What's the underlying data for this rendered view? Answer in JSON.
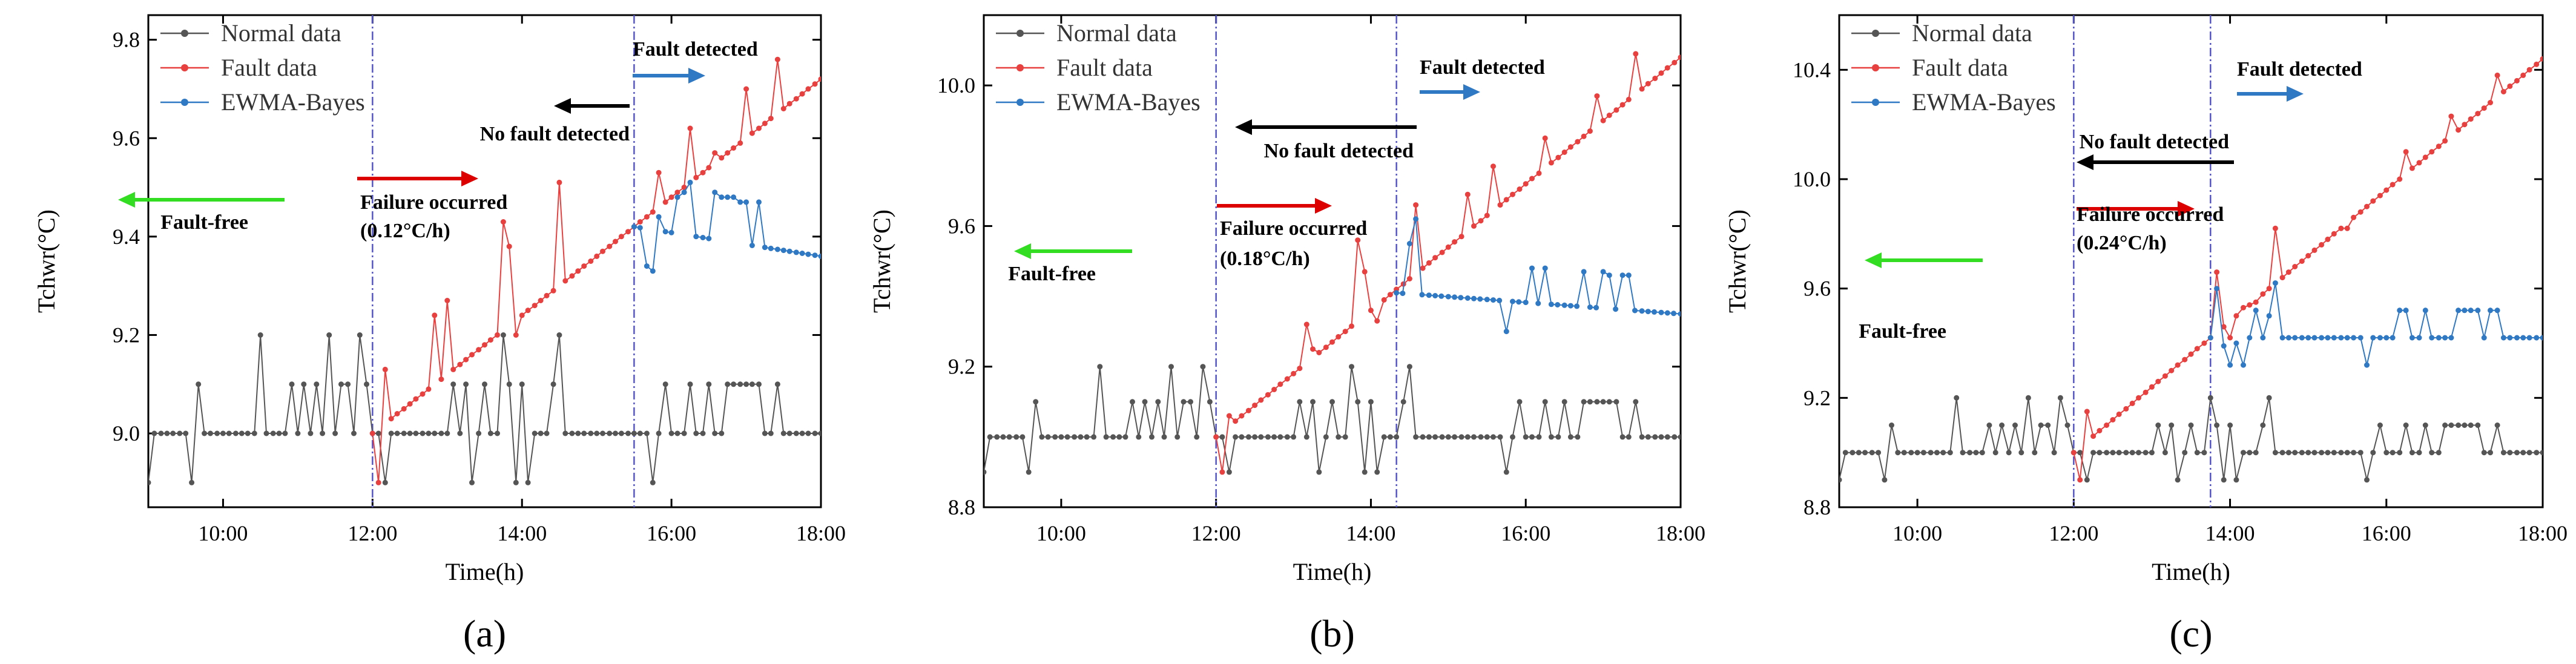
{
  "chart_data": [
    {
      "type": "line",
      "panel_label": "(a)",
      "xlabel": "Time(h)",
      "ylabel": "Tchwr(°C)",
      "xlim": [
        9.0,
        18.0
      ],
      "ylim": [
        8.85,
        9.85
      ],
      "x_ticks": [
        10,
        12,
        14,
        16,
        18
      ],
      "x_tick_labels": [
        "10:00",
        "12:00",
        "14:00",
        "16:00",
        "18:00"
      ],
      "y_ticks": [
        9.0,
        9.2,
        9.4,
        9.6,
        9.8
      ],
      "y_tick_labels": [
        "9.0",
        "9.2",
        "9.4",
        "9.6",
        "9.8"
      ],
      "legend": [
        "Normal data",
        "Fault data",
        "EWMA-Bayes"
      ],
      "colors": {
        "normal": "#555555",
        "fault": "#e8403f",
        "ewma": "#2f78c4",
        "green": "#33dd22",
        "red": "#dd0000",
        "black": "#000000",
        "blue": "#2f78c4",
        "vline": "#5555cc"
      },
      "fault_start": 12.0,
      "fault_rate": 0.12,
      "detect_time": 15.5,
      "normal_base": 9.0,
      "normal_spikes": [
        [
          9.0,
          8.9
        ],
        [
          9.58,
          8.9
        ],
        [
          9.67,
          9.1
        ],
        [
          10.5,
          9.2
        ],
        [
          10.92,
          9.1
        ],
        [
          11.08,
          9.1
        ],
        [
          11.17,
          9.0
        ],
        [
          11.25,
          9.1
        ],
        [
          11.42,
          9.2
        ],
        [
          11.5,
          9.0
        ],
        [
          11.58,
          9.1
        ],
        [
          11.67,
          9.1
        ],
        [
          11.83,
          9.2
        ],
        [
          11.92,
          9.1
        ],
        [
          12.17,
          8.9
        ],
        [
          12.25,
          9.0
        ],
        [
          13.08,
          9.1
        ],
        [
          13.25,
          9.1
        ],
        [
          13.33,
          8.9
        ],
        [
          13.5,
          9.1
        ],
        [
          13.75,
          9.2
        ],
        [
          13.83,
          9.1
        ],
        [
          13.92,
          8.9
        ],
        [
          14.0,
          9.1
        ],
        [
          14.08,
          8.9
        ],
        [
          14.42,
          9.1
        ],
        [
          14.5,
          9.2
        ],
        [
          15.75,
          8.9
        ],
        [
          15.92,
          9.1
        ],
        [
          16.25,
          9.1
        ],
        [
          16.5,
          9.1
        ],
        [
          16.75,
          9.1
        ],
        [
          16.83,
          9.1
        ],
        [
          16.92,
          9.1
        ],
        [
          17.0,
          9.1
        ],
        [
          17.08,
          9.1
        ],
        [
          17.17,
          9.1
        ],
        [
          17.42,
          9.1
        ]
      ],
      "fault_spikes": [
        [
          12.08,
          8.9
        ],
        [
          12.17,
          9.13
        ],
        [
          12.83,
          9.24
        ],
        [
          13.0,
          9.27
        ],
        [
          13.75,
          9.43
        ],
        [
          13.83,
          9.38
        ],
        [
          13.92,
          9.2
        ],
        [
          14.08,
          9.25
        ],
        [
          14.5,
          9.51
        ],
        [
          15.83,
          9.53
        ],
        [
          16.25,
          9.62
        ],
        [
          16.58,
          9.57
        ],
        [
          17.0,
          9.7
        ],
        [
          17.42,
          9.76
        ]
      ],
      "ewma_start": 15.5,
      "ewma_base": [
        9.42,
        9.36
      ],
      "ewma_spikes": [
        [
          15.67,
          9.34
        ],
        [
          15.75,
          9.33
        ],
        [
          15.83,
          9.44
        ],
        [
          16.08,
          9.48
        ],
        [
          16.17,
          9.49
        ],
        [
          16.25,
          9.51
        ],
        [
          16.58,
          9.49
        ],
        [
          16.67,
          9.48
        ],
        [
          16.75,
          9.48
        ],
        [
          16.83,
          9.48
        ],
        [
          16.92,
          9.47
        ],
        [
          17.0,
          9.47
        ],
        [
          17.17,
          9.47
        ]
      ],
      "vlines": [
        12.0,
        15.5
      ],
      "legend_pos": "top-left",
      "annotations": {
        "fault_free": "Fault-free",
        "failure_line1": "Failure occurred",
        "failure_line2": "(0.12°C/h)",
        "no_fault": "No fault detected",
        "detected": "Fault detected"
      }
    },
    {
      "type": "line",
      "panel_label": "(b)",
      "xlabel": "Time(h)",
      "ylabel": "Tchwr(°C)",
      "xlim": [
        9.0,
        18.0
      ],
      "ylim": [
        8.8,
        10.2
      ],
      "x_ticks": [
        10,
        12,
        14,
        16,
        18
      ],
      "x_tick_labels": [
        "10:00",
        "12:00",
        "14:00",
        "16:00",
        "18:00"
      ],
      "y_ticks": [
        8.8,
        9.2,
        9.6,
        10.0
      ],
      "y_tick_labels": [
        "8.8",
        "9.2",
        "9.6",
        "10.0"
      ],
      "legend": [
        "Normal data",
        "Fault data",
        "EWMA-Bayes"
      ],
      "colors": {
        "normal": "#555555",
        "fault": "#e8403f",
        "ewma": "#2f78c4",
        "green": "#33dd22",
        "red": "#dd0000",
        "black": "#000000",
        "blue": "#2f78c4",
        "vline": "#5555cc"
      },
      "fault_start": 12.0,
      "fault_rate": 0.18,
      "detect_time": 14.33,
      "normal_base": 9.0,
      "normal_spikes": [
        [
          9.0,
          8.9
        ],
        [
          9.58,
          8.9
        ],
        [
          9.67,
          9.1
        ],
        [
          10.5,
          9.2
        ],
        [
          10.92,
          9.1
        ],
        [
          11.08,
          9.1
        ],
        [
          11.17,
          9.0
        ],
        [
          11.25,
          9.1
        ],
        [
          11.42,
          9.2
        ],
        [
          11.5,
          9.0
        ],
        [
          11.58,
          9.1
        ],
        [
          11.67,
          9.1
        ],
        [
          11.83,
          9.2
        ],
        [
          11.92,
          9.1
        ],
        [
          12.17,
          8.9
        ],
        [
          12.25,
          9.0
        ],
        [
          13.08,
          9.1
        ],
        [
          13.25,
          9.1
        ],
        [
          13.33,
          8.9
        ],
        [
          13.5,
          9.1
        ],
        [
          13.75,
          9.2
        ],
        [
          13.83,
          9.1
        ],
        [
          13.92,
          8.9
        ],
        [
          14.0,
          9.1
        ],
        [
          14.08,
          8.9
        ],
        [
          14.42,
          9.1
        ],
        [
          14.5,
          9.2
        ],
        [
          15.75,
          8.9
        ],
        [
          15.92,
          9.1
        ],
        [
          16.25,
          9.1
        ],
        [
          16.5,
          9.1
        ],
        [
          16.75,
          9.1
        ],
        [
          16.83,
          9.1
        ],
        [
          16.92,
          9.1
        ],
        [
          17.0,
          9.1
        ],
        [
          17.08,
          9.1
        ],
        [
          17.17,
          9.1
        ],
        [
          17.42,
          9.1
        ]
      ],
      "fault_spikes": [
        [
          12.08,
          8.9
        ],
        [
          12.17,
          9.06
        ],
        [
          13.17,
          9.32
        ],
        [
          13.25,
          9.25
        ],
        [
          13.83,
          9.56
        ],
        [
          13.92,
          9.47
        ],
        [
          14.08,
          9.33
        ],
        [
          14.58,
          9.66
        ],
        [
          15.25,
          9.69
        ],
        [
          15.58,
          9.77
        ],
        [
          16.25,
          9.85
        ],
        [
          16.92,
          9.97
        ],
        [
          17.42,
          10.09
        ]
      ],
      "ewma_start": 14.33,
      "ewma_base": [
        9.41,
        9.35
      ],
      "ewma_spikes": [
        [
          14.5,
          9.55
        ],
        [
          14.58,
          9.62
        ],
        [
          15.75,
          9.3
        ],
        [
          16.08,
          9.48
        ],
        [
          16.25,
          9.48
        ],
        [
          16.42,
          9.44
        ],
        [
          16.67,
          9.46
        ],
        [
          16.75,
          9.47
        ],
        [
          16.92,
          9.47
        ],
        [
          17.0,
          9.47
        ],
        [
          17.08,
          9.46
        ],
        [
          17.25,
          9.46
        ],
        [
          17.33,
          9.46
        ]
      ],
      "vlines": [
        12.0,
        14.33
      ],
      "legend_pos": "top-left",
      "annotations": {
        "fault_free": "Fault-free",
        "failure_line1": "Failure occurred",
        "failure_line2": "(0.18°C/h)",
        "no_fault": "No fault detected",
        "detected": "Fault detected"
      }
    },
    {
      "type": "line",
      "panel_label": "(c)",
      "xlabel": "Time(h)",
      "ylabel": "Tchwr(°C)",
      "xlim": [
        9.0,
        18.0
      ],
      "ylim": [
        8.8,
        10.6
      ],
      "x_ticks": [
        10,
        12,
        14,
        16,
        18
      ],
      "x_tick_labels": [
        "10:00",
        "12:00",
        "14:00",
        "16:00",
        "18:00"
      ],
      "y_ticks": [
        8.8,
        9.2,
        9.6,
        10.0,
        10.4
      ],
      "y_tick_labels": [
        "8.8",
        "9.2",
        "9.6",
        "10.0",
        "10.4"
      ],
      "legend": [
        "Normal data",
        "Fault data",
        "EWMA-Bayes"
      ],
      "colors": {
        "normal": "#555555",
        "fault": "#e8403f",
        "ewma": "#2f78c4",
        "green": "#33dd22",
        "red": "#dd0000",
        "black": "#000000",
        "blue": "#2f78c4",
        "vline": "#5555cc"
      },
      "fault_start": 12.0,
      "fault_rate": 0.24,
      "detect_time": 13.75,
      "normal_base": 9.0,
      "normal_spikes": [
        [
          9.0,
          8.9
        ],
        [
          9.58,
          8.9
        ],
        [
          9.67,
          9.1
        ],
        [
          10.5,
          9.2
        ],
        [
          10.92,
          9.1
        ],
        [
          11.08,
          9.1
        ],
        [
          11.17,
          9.0
        ],
        [
          11.25,
          9.1
        ],
        [
          11.42,
          9.2
        ],
        [
          11.5,
          9.0
        ],
        [
          11.58,
          9.1
        ],
        [
          11.67,
          9.1
        ],
        [
          11.83,
          9.2
        ],
        [
          11.92,
          9.1
        ],
        [
          12.17,
          8.9
        ],
        [
          12.25,
          9.0
        ],
        [
          13.08,
          9.1
        ],
        [
          13.25,
          9.1
        ],
        [
          13.33,
          8.9
        ],
        [
          13.5,
          9.1
        ],
        [
          13.75,
          9.2
        ],
        [
          13.83,
          9.1
        ],
        [
          13.92,
          8.9
        ],
        [
          14.0,
          9.1
        ],
        [
          14.08,
          8.9
        ],
        [
          14.42,
          9.1
        ],
        [
          14.5,
          9.2
        ],
        [
          15.75,
          8.9
        ],
        [
          15.92,
          9.1
        ],
        [
          16.25,
          9.1
        ],
        [
          16.5,
          9.1
        ],
        [
          16.75,
          9.1
        ],
        [
          16.83,
          9.1
        ],
        [
          16.92,
          9.1
        ],
        [
          17.0,
          9.1
        ],
        [
          17.08,
          9.1
        ],
        [
          17.17,
          9.1
        ],
        [
          17.42,
          9.1
        ]
      ],
      "fault_spikes": [
        [
          12.08,
          8.9
        ],
        [
          12.17,
          9.15
        ],
        [
          13.83,
          9.66
        ],
        [
          14.0,
          9.42
        ],
        [
          14.17,
          9.53
        ],
        [
          14.33,
          9.55
        ],
        [
          14.58,
          9.82
        ],
        [
          15.5,
          9.82
        ],
        [
          16.25,
          10.1
        ],
        [
          16.83,
          10.23
        ],
        [
          17.42,
          10.38
        ]
      ],
      "ewma_start": 13.75,
      "ewma_base": [
        9.42,
        9.42
      ],
      "ewma_spikes": [
        [
          13.83,
          9.6
        ],
        [
          13.92,
          9.39
        ],
        [
          14.0,
          9.32
        ],
        [
          14.08,
          9.4
        ],
        [
          14.17,
          9.32
        ],
        [
          14.33,
          9.52
        ],
        [
          14.5,
          9.5
        ],
        [
          14.58,
          9.62
        ],
        [
          15.75,
          9.32
        ],
        [
          16.17,
          9.52
        ],
        [
          16.25,
          9.52
        ],
        [
          16.5,
          9.52
        ],
        [
          16.92,
          9.52
        ],
        [
          17.0,
          9.52
        ],
        [
          17.08,
          9.52
        ],
        [
          17.17,
          9.52
        ],
        [
          17.33,
          9.52
        ],
        [
          17.42,
          9.52
        ]
      ],
      "vlines": [
        12.0,
        13.75
      ],
      "legend_pos": "top-left",
      "annotations": {
        "fault_free": "Fault-free",
        "failure_line1": "Failure occurred",
        "failure_line2": "(0.24°C/h)",
        "no_fault": "No fault detected",
        "detected": "Fault detected"
      }
    }
  ]
}
